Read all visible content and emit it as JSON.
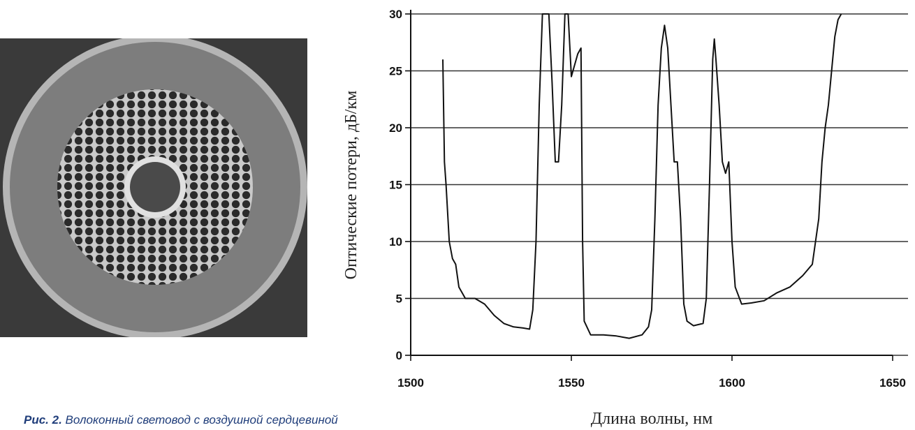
{
  "chart_data": {
    "type": "line",
    "ylabel": "Оптические потери, дБ/км",
    "xlabel": "Длина волны, нм",
    "xlim": [
      1500,
      1650
    ],
    "xticks": [
      1500,
      1550,
      1600,
      1650
    ],
    "ylim": [
      0,
      30
    ],
    "yticks": [
      0,
      5,
      10,
      15,
      20,
      25,
      30
    ],
    "grid": true,
    "series": [
      {
        "color": "#111111",
        "x": [
          1510,
          1510.5,
          1511,
          1512,
          1513,
          1514,
          1515,
          1517,
          1520,
          1523,
          1526,
          1529,
          1532,
          1535,
          1537,
          1538,
          1539,
          1540,
          1541,
          1543,
          1544,
          1545,
          1546,
          1547,
          1548,
          1549,
          1550,
          1551,
          1552,
          1553,
          1553.5,
          1554,
          1556,
          1560,
          1564,
          1568,
          1572,
          1574,
          1575,
          1576,
          1577,
          1578,
          1579,
          1580,
          1581,
          1582,
          1583,
          1584,
          1585,
          1586,
          1588,
          1591,
          1592,
          1593,
          1594,
          1594.5,
          1595,
          1596,
          1597,
          1598,
          1599,
          1600,
          1601,
          1603,
          1606,
          1610,
          1614,
          1618,
          1622,
          1625,
          1627,
          1628,
          1629,
          1630,
          1631,
          1632,
          1633,
          1634
        ],
        "values": [
          26,
          17,
          15,
          10,
          8.5,
          8,
          6,
          5,
          5,
          4.5,
          3.5,
          2.8,
          2.5,
          2.4,
          2.3,
          4,
          10,
          22,
          30,
          30,
          24,
          17,
          17,
          22,
          30,
          30,
          24.5,
          25.5,
          26.5,
          27,
          10,
          3,
          1.8,
          1.8,
          1.7,
          1.5,
          1.8,
          2.5,
          4,
          12,
          22,
          27,
          29,
          27,
          22,
          17,
          17,
          12,
          4.5,
          3,
          2.6,
          2.8,
          5,
          15,
          26,
          27.8,
          26,
          22,
          17,
          16,
          17,
          10,
          6,
          4.5,
          4.6,
          4.8,
          5.5,
          6,
          7,
          8,
          12,
          17,
          20,
          22,
          25,
          28,
          29.5,
          30
        ]
      }
    ]
  },
  "caption": {
    "label": "Рис. 2.",
    "text": "Волоконный световод с воздушной сердцевиной"
  }
}
